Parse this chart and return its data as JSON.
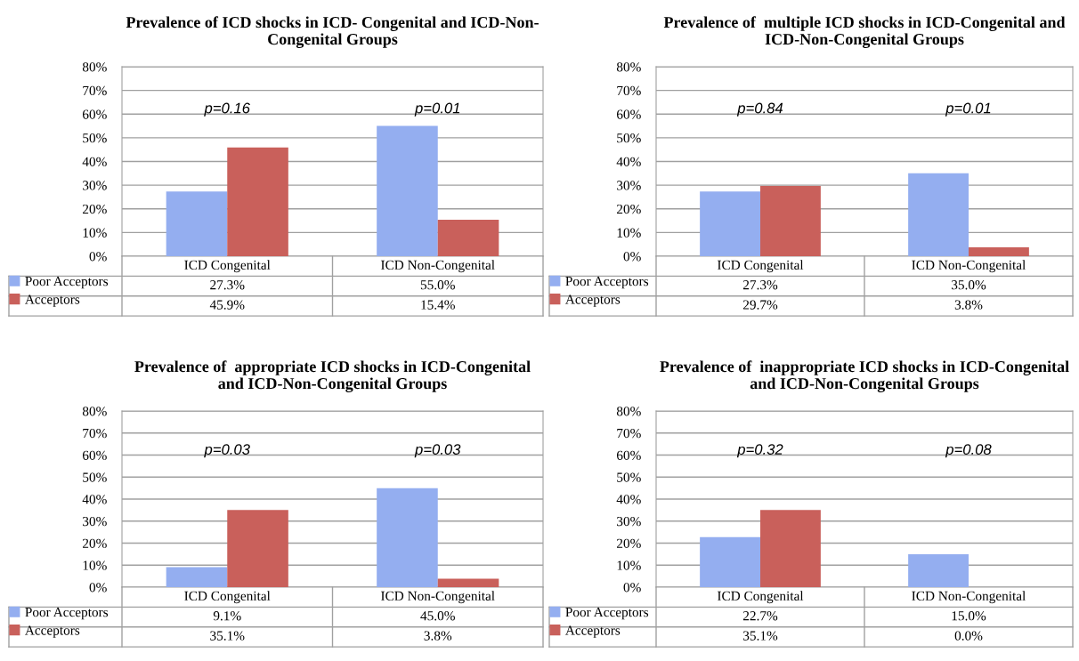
{
  "chart_data": [
    {
      "type": "bar",
      "title": "Prevalence of ICD shocks in ICD- Congenital and ICD-Non-\nCongenital Groups",
      "categories": [
        "ICD Congenital",
        "ICD Non-Congenital"
      ],
      "series": [
        {
          "name": "Poor Acceptors",
          "color": "#94aef0",
          "values": [
            27.3,
            55.0
          ],
          "value_labels": [
            "27.3%",
            "55.0%"
          ]
        },
        {
          "name": "Acceptors",
          "color": "#c9605b",
          "values": [
            45.9,
            15.4
          ],
          "value_labels": [
            "45.9%",
            "15.4%"
          ]
        }
      ],
      "ylim": [
        0,
        80
      ],
      "yticks": [
        {
          "value": 0,
          "label": "0%"
        },
        {
          "value": 10,
          "label": "10%"
        },
        {
          "value": 20,
          "label": "20%"
        },
        {
          "value": 30,
          "label": "30%"
        },
        {
          "value": 40,
          "label": "40%"
        },
        {
          "value": 50,
          "label": "50%"
        },
        {
          "value": 60,
          "label": "60%"
        },
        {
          "value": 70,
          "label": "70%"
        },
        {
          "value": 80,
          "label": "80%"
        }
      ],
      "grid": "y",
      "legend": "bottom",
      "annotations": [
        "p=0.16",
        "p=0.01"
      ]
    },
    {
      "type": "bar",
      "title": "Prevalence of  multiple ICD shocks in ICD-Congenital and\nICD-Non-Congenital Groups",
      "categories": [
        "ICD Congenital",
        "ICD Non-Congenital"
      ],
      "series": [
        {
          "name": "Poor Acceptors",
          "color": "#94aef0",
          "values": [
            27.3,
            35.0
          ],
          "value_labels": [
            "27.3%",
            "35.0%"
          ]
        },
        {
          "name": "Acceptors",
          "color": "#c9605b",
          "values": [
            29.7,
            3.8
          ],
          "value_labels": [
            "29.7%",
            "3.8%"
          ]
        }
      ],
      "ylim": [
        0,
        80
      ],
      "yticks": [
        {
          "value": 0,
          "label": "0%"
        },
        {
          "value": 10,
          "label": "10%"
        },
        {
          "value": 20,
          "label": "20%"
        },
        {
          "value": 30,
          "label": "30%"
        },
        {
          "value": 40,
          "label": "40%"
        },
        {
          "value": 50,
          "label": "50%"
        },
        {
          "value": 60,
          "label": "60%"
        },
        {
          "value": 70,
          "label": "70%"
        },
        {
          "value": 80,
          "label": "80%"
        }
      ],
      "grid": "y",
      "legend": "bottom",
      "annotations": [
        "p=0.84",
        "p=0.01"
      ]
    },
    {
      "type": "bar",
      "title": "Prevalence of  appropriate ICD shocks in ICD-Congenital\nand ICD-Non-Congenital Groups",
      "categories": [
        "ICD Congenital",
        "ICD Non-Congenital"
      ],
      "series": [
        {
          "name": "Poor Acceptors",
          "color": "#94aef0",
          "values": [
            9.1,
            45.0
          ],
          "value_labels": [
            "9.1%",
            "45.0%"
          ]
        },
        {
          "name": "Acceptors",
          "color": "#c9605b",
          "values": [
            35.1,
            3.8
          ],
          "value_labels": [
            "35.1%",
            "3.8%"
          ]
        }
      ],
      "ylim": [
        0,
        80
      ],
      "yticks": [
        {
          "value": 0,
          "label": "0%"
        },
        {
          "value": 10,
          "label": "10%"
        },
        {
          "value": 20,
          "label": "20%"
        },
        {
          "value": 30,
          "label": "30%"
        },
        {
          "value": 40,
          "label": "40%"
        },
        {
          "value": 50,
          "label": "50%"
        },
        {
          "value": 60,
          "label": "60%"
        },
        {
          "value": 70,
          "label": "70%"
        },
        {
          "value": 80,
          "label": "80%"
        }
      ],
      "grid": "y",
      "legend": "bottom",
      "annotations": [
        "p=0.03",
        "p=0.03"
      ]
    },
    {
      "type": "bar",
      "title": "Prevalence of  inappropriate ICD shocks in ICD-Congenital\nand ICD-Non-Congenital Groups",
      "categories": [
        "ICD Congenital",
        "ICD Non-Congenital"
      ],
      "series": [
        {
          "name": "Poor Acceptors",
          "color": "#94aef0",
          "values": [
            22.7,
            15.0
          ],
          "value_labels": [
            "22.7%",
            "15.0%"
          ]
        },
        {
          "name": "Acceptors",
          "color": "#c9605b",
          "values": [
            35.1,
            0.0
          ],
          "value_labels": [
            "35.1%",
            "0.0%"
          ]
        }
      ],
      "ylim": [
        0,
        80
      ],
      "yticks": [
        {
          "value": 0,
          "label": "0%"
        },
        {
          "value": 10,
          "label": "10%"
        },
        {
          "value": 20,
          "label": "20%"
        },
        {
          "value": 30,
          "label": "30%"
        },
        {
          "value": 40,
          "label": "40%"
        },
        {
          "value": 50,
          "label": "50%"
        },
        {
          "value": 60,
          "label": "60%"
        },
        {
          "value": 70,
          "label": "70%"
        },
        {
          "value": 80,
          "label": "80%"
        }
      ],
      "grid": "y",
      "legend": "bottom",
      "annotations": [
        "p=0.32",
        "p=0.08"
      ]
    }
  ]
}
